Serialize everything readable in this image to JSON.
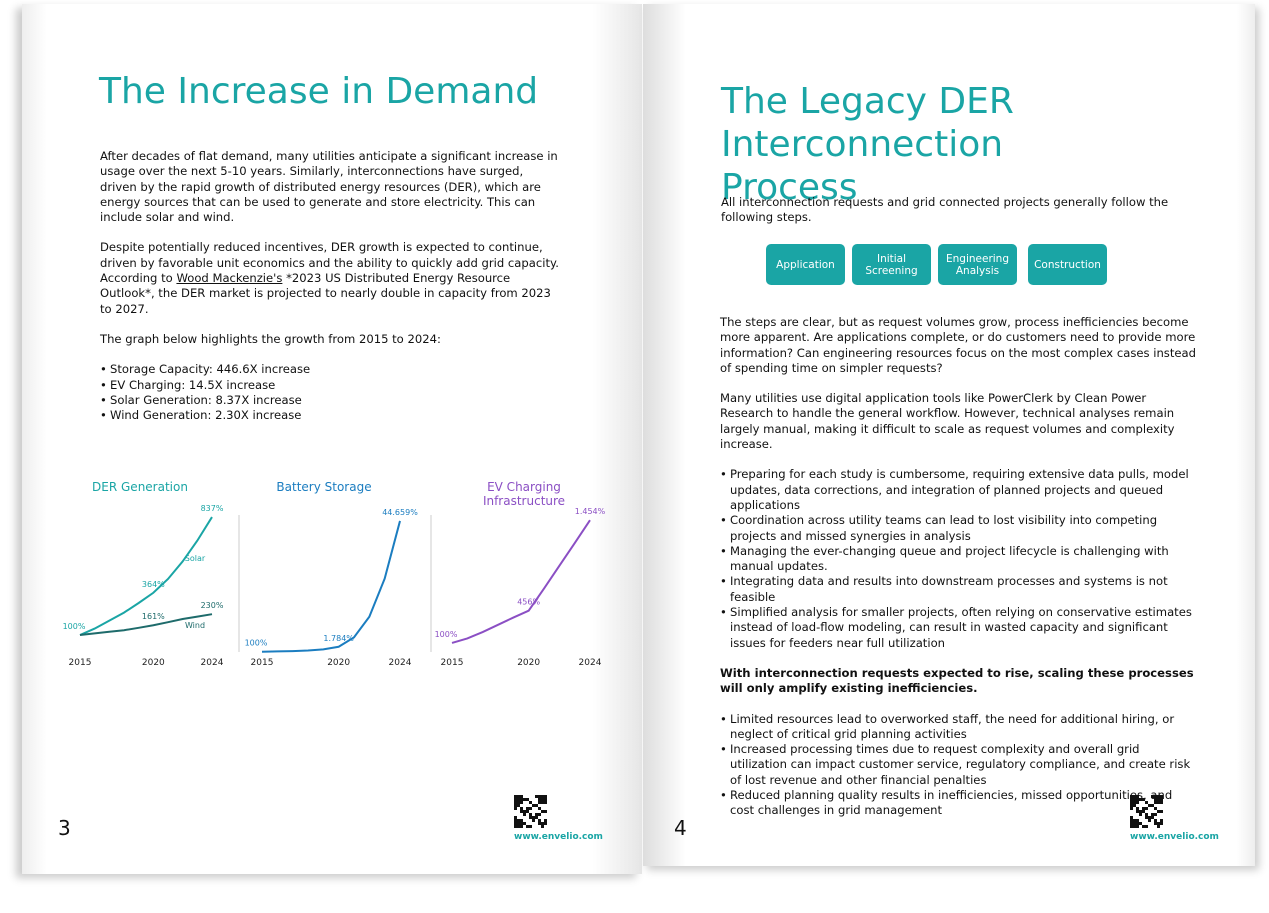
{
  "left_page": {
    "title": "The Increase in Demand",
    "paragraphs": [
      "After decades of flat demand, many utilities anticipate a significant increase in usage over the next 5-10 years. Similarly, interconnections have surged, driven by the rapid growth of distributed energy resources (DER), which are energy sources that can be used to generate and store electricity. This can include solar and wind."
    ],
    "paragraph2": {
      "before": "Despite potentially reduced incentives, DER growth is expected to continue, driven by favorable unit economics and the ability to quickly add grid capacity. According to ",
      "link": "Wood Mackenzie's",
      "after": " *2023 US Distributed Energy Resource Outlook*, the DER market is projected to nearly double in capacity from 2023 to 2027."
    },
    "paragraph3": "The graph below highlights the growth from 2015 to 2024:",
    "bullets": [
      "Storage Capacity: 446.6X increase",
      "EV Charging: 14.5X increase",
      "Solar Generation: 8.37X increase",
      "Wind Generation: 2.30X increase"
    ],
    "page_number": "3",
    "url": "www.envelio.com"
  },
  "chart_data": [
    {
      "type": "line",
      "title": "DER Generation",
      "color": "#1aa5a5",
      "x": [
        2015,
        2016,
        2017,
        2018,
        2019,
        2020,
        2021,
        2022,
        2023,
        2024
      ],
      "xlim": [
        2015,
        2024
      ],
      "xticks": [
        2015,
        2020,
        2024
      ],
      "ylim": [
        0,
        900
      ],
      "series": [
        {
          "name": "Solar",
          "color": "#1aa5a5",
          "values": [
            100,
            140,
            190,
            240,
            300,
            364,
            450,
            560,
            690,
            837
          ],
          "value_labels": [
            "100%",
            null,
            null,
            null,
            null,
            "364%",
            null,
            null,
            null,
            "837%"
          ]
        },
        {
          "name": "Wind",
          "color": "#1e6b6b",
          "values": [
            100,
            110,
            120,
            130,
            145,
            161,
            180,
            200,
            215,
            230
          ],
          "value_labels": [
            null,
            null,
            null,
            null,
            null,
            "161%",
            null,
            null,
            null,
            "230%"
          ]
        }
      ]
    },
    {
      "type": "line",
      "title": "Battery Storage",
      "color": "#1b7dc0",
      "x": [
        2015,
        2016,
        2017,
        2018,
        2019,
        2020,
        2021,
        2022,
        2023,
        2024
      ],
      "xlim": [
        2015,
        2024
      ],
      "xticks": [
        2015,
        2020,
        2024
      ],
      "ylim": [
        0,
        46000
      ],
      "series": [
        {
          "color": "#1b7dc0",
          "values": [
            100,
            200,
            300,
            500,
            900,
            1784,
            5000,
            12000,
            25000,
            44659
          ],
          "value_labels": [
            "100%",
            null,
            null,
            null,
            null,
            "1.784%",
            null,
            null,
            null,
            "44.659%"
          ]
        }
      ]
    },
    {
      "type": "line",
      "title": "EV Charging Infrastructure",
      "color": "#8b4fc4",
      "x": [
        2015,
        2016,
        2017,
        2018,
        2019,
        2020,
        2021,
        2022,
        2023,
        2024
      ],
      "xlim": [
        2015,
        2024
      ],
      "xticks": [
        2015,
        2020,
        2024
      ],
      "ylim": [
        0,
        1500
      ],
      "series": [
        {
          "color": "#8b4fc4",
          "values": [
            100,
            150,
            220,
            300,
            380,
            456,
            700,
            950,
            1200,
            1454
          ],
          "value_labels": [
            "100%",
            null,
            null,
            null,
            null,
            "456%",
            null,
            null,
            null,
            "1.454%"
          ]
        }
      ]
    }
  ],
  "right_page": {
    "title": "The Legacy DER Interconnection Process",
    "intro": "All interconnection requests and grid connected projects generally follow the following steps.",
    "steps": [
      "Application",
      "Initial Screening",
      "Engineering Analysis",
      "Construction"
    ],
    "paragraphs": [
      "The steps are clear, but as request volumes grow, process inefficiencies become more apparent. Are applications complete, or do customers need to provide more information? Can engineering resources focus on the most complex cases instead of spending time on simpler requests?",
      "Many utilities use digital application tools like PowerClerk by Clean Power Research to handle the general workflow. However, technical analyses remain largely manual, making it difficult to scale as request volumes and complexity increase."
    ],
    "bullets": [
      "Preparing for each study is cumbersome, requiring extensive data pulls, model updates, data corrections, and integration of planned projects and queued applications",
      "Coordination across utility teams can lead to lost visibility into competing projects and missed synergies in analysis",
      "Managing the ever-changing queue and project lifecycle is challenging with manual updates.",
      " Integrating data and results into downstream processes and systems is not feasible",
      "Simplified analysis for smaller projects, often relying on conservative estimates instead of load-flow modeling, can result in wasted capacity and significant issues for feeders near full utilization"
    ],
    "bold_paragraph": "With interconnection requests expected to rise, scaling these processes will only amplify existing inefficiencies.",
    "bullets2": [
      "Limited resources lead to overworked staff, the need for additional hiring, or neglect of critical grid planning activities",
      "Increased processing times due to request complexity and overall grid utilization can impact customer service, regulatory compliance, and create risk of lost revenue and other financial penalties",
      "Reduced planning quality results in inefficiencies, missed opportunities, and cost challenges in grid management"
    ],
    "page_number": "4",
    "url": "www.envelio.com"
  }
}
